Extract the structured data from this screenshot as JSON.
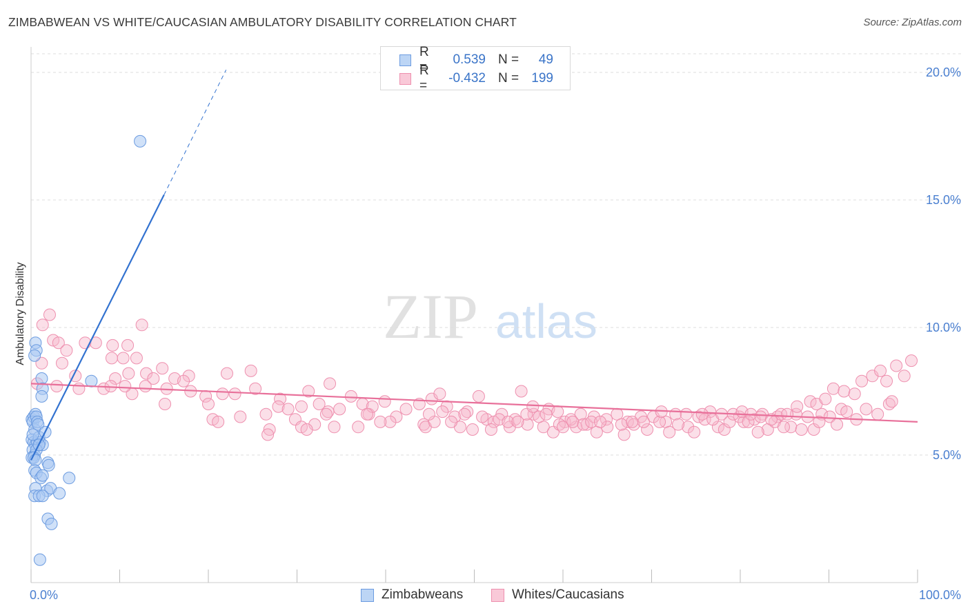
{
  "title": "ZIMBABWEAN VS WHITE/CAUCASIAN AMBULATORY DISABILITY CORRELATION CHART",
  "source": "Source: ZipAtlas.com",
  "watermark": {
    "zip": "ZIP",
    "atlas": "atlas"
  },
  "colors": {
    "blue_fill": "#a9c8f2",
    "blue_stroke": "#6b9be0",
    "blue_line": "#3272d0",
    "pink_fill": "#f6b7cb",
    "pink_stroke": "#ee8fae",
    "pink_line": "#e8709a",
    "tick_label": "#4a7fd0",
    "grid": "#dddddd"
  },
  "legend_top": [
    {
      "series": "Zimbabweans",
      "r_label": "R =",
      "r_value": "0.539",
      "n_label": "N =",
      "n_value": "49"
    },
    {
      "series": "Whites/Caucasians",
      "r_label": "R =",
      "r_value": "-0.432",
      "n_label": "N =",
      "n_value": "199"
    }
  ],
  "legend_bottom": [
    "Zimbabweans",
    "Whites/Caucasians"
  ],
  "chart_data": {
    "type": "scatter",
    "title": "ZIMBABWEAN VS WHITE/CAUCASIAN AMBULATORY DISABILITY CORRELATION CHART",
    "xlabel": "",
    "ylabel": "Ambulatory Disability",
    "xlim": [
      0,
      100
    ],
    "ylim": [
      0,
      21
    ],
    "x_tick_labels": [
      "0.0%",
      "100.0%"
    ],
    "y_ticks": [
      5,
      10,
      15,
      20
    ],
    "y_tick_labels": [
      "5.0%",
      "10.0%",
      "15.0%",
      "20.0%"
    ],
    "grid": true,
    "legend_position": "top-center",
    "series": [
      {
        "name": "Zimbabweans",
        "r": 0.539,
        "n": 49,
        "trend": {
          "x0": 0,
          "y0": 4.8,
          "x1": 15,
          "y1": 15.2,
          "dashed_to_x": 22,
          "dashed_to_y": 20.1
        },
        "points": [
          [
            0.1,
            6.4
          ],
          [
            0.3,
            6.5
          ],
          [
            0.5,
            6.6
          ],
          [
            0.2,
            6.3
          ],
          [
            0.6,
            6.5
          ],
          [
            0.4,
            6.0
          ],
          [
            0.7,
            6.3
          ],
          [
            0.8,
            6.2
          ],
          [
            0.1,
            5.6
          ],
          [
            0.3,
            5.5
          ],
          [
            0.5,
            5.4
          ],
          [
            0.7,
            5.5
          ],
          [
            1.0,
            5.5
          ],
          [
            1.3,
            5.4
          ],
          [
            0.2,
            5.2
          ],
          [
            0.4,
            5.0
          ],
          [
            0.6,
            5.2
          ],
          [
            0.1,
            4.9
          ],
          [
            0.3,
            4.9
          ],
          [
            0.5,
            4.8
          ],
          [
            0.9,
            5.7
          ],
          [
            1.6,
            5.9
          ],
          [
            1.9,
            4.7
          ],
          [
            2.0,
            4.6
          ],
          [
            0.4,
            4.4
          ],
          [
            0.6,
            4.3
          ],
          [
            1.1,
            4.1
          ],
          [
            1.3,
            4.2
          ],
          [
            0.5,
            3.7
          ],
          [
            1.8,
            3.6
          ],
          [
            2.2,
            3.7
          ],
          [
            0.4,
            3.4
          ],
          [
            0.9,
            3.4
          ],
          [
            1.3,
            3.4
          ],
          [
            3.2,
            3.5
          ],
          [
            4.3,
            4.1
          ],
          [
            1.9,
            2.5
          ],
          [
            2.3,
            2.3
          ],
          [
            1.0,
            0.9
          ],
          [
            0.5,
            9.4
          ],
          [
            0.6,
            9.1
          ],
          [
            0.4,
            8.9
          ],
          [
            1.2,
            8.0
          ],
          [
            1.3,
            7.6
          ],
          [
            1.2,
            7.3
          ],
          [
            0.9,
            5.4
          ],
          [
            0.2,
            5.8
          ],
          [
            12.3,
            17.3
          ],
          [
            6.8,
            7.9
          ]
        ]
      },
      {
        "name": "Whites/Caucasians",
        "r": -0.432,
        "n": 199,
        "trend": {
          "x0": 0,
          "y0": 7.8,
          "x1": 100,
          "y1": 6.3
        },
        "points": [
          [
            2.1,
            10.5
          ],
          [
            1.3,
            10.1
          ],
          [
            12.5,
            10.1
          ],
          [
            2.5,
            9.5
          ],
          [
            3.1,
            9.4
          ],
          [
            6.1,
            9.4
          ],
          [
            9.2,
            9.3
          ],
          [
            7.3,
            9.4
          ],
          [
            4.0,
            9.1
          ],
          [
            10.9,
            9.3
          ],
          [
            1.2,
            8.6
          ],
          [
            3.5,
            8.6
          ],
          [
            5.0,
            8.1
          ],
          [
            9.1,
            8.8
          ],
          [
            10.4,
            8.8
          ],
          [
            11.9,
            8.8
          ],
          [
            9.5,
            8.0
          ],
          [
            13.0,
            8.2
          ],
          [
            14.8,
            8.4
          ],
          [
            16.2,
            8.0
          ],
          [
            13.8,
            8.0
          ],
          [
            11.0,
            8.2
          ],
          [
            17.8,
            8.1
          ],
          [
            22.1,
            8.2
          ],
          [
            24.8,
            8.3
          ],
          [
            0.7,
            7.8
          ],
          [
            2.9,
            7.7
          ],
          [
            5.4,
            7.6
          ],
          [
            8.2,
            7.6
          ],
          [
            9.0,
            7.7
          ],
          [
            11.4,
            7.4
          ],
          [
            15.3,
            7.6
          ],
          [
            17.2,
            7.9
          ],
          [
            18.0,
            7.5
          ],
          [
            19.7,
            7.3
          ],
          [
            21.6,
            7.4
          ],
          [
            25.3,
            7.6
          ],
          [
            28.1,
            7.2
          ],
          [
            31.3,
            7.5
          ],
          [
            33.7,
            7.8
          ],
          [
            15.1,
            7.0
          ],
          [
            12.9,
            7.7
          ],
          [
            10.6,
            7.7
          ],
          [
            20.0,
            7.0
          ],
          [
            23.0,
            7.4
          ],
          [
            20.5,
            6.4
          ],
          [
            21.1,
            6.3
          ],
          [
            23.6,
            6.5
          ],
          [
            26.5,
            6.6
          ],
          [
            27.9,
            6.9
          ],
          [
            29.0,
            6.8
          ],
          [
            30.5,
            6.9
          ],
          [
            32.5,
            7.0
          ],
          [
            34.8,
            6.8
          ],
          [
            36.1,
            7.3
          ],
          [
            37.4,
            7.0
          ],
          [
            38.1,
            6.6
          ],
          [
            39.9,
            7.1
          ],
          [
            41.2,
            6.5
          ],
          [
            42.3,
            6.8
          ],
          [
            43.8,
            7.0
          ],
          [
            45.2,
            7.2
          ],
          [
            46.1,
            7.4
          ],
          [
            46.9,
            6.9
          ],
          [
            47.8,
            6.5
          ],
          [
            49.2,
            6.7
          ],
          [
            50.5,
            7.3
          ],
          [
            51.4,
            6.4
          ],
          [
            53.1,
            6.6
          ],
          [
            54.6,
            6.4
          ],
          [
            55.3,
            7.5
          ],
          [
            56.7,
            6.6
          ],
          [
            57.8,
            6.1
          ],
          [
            58.4,
            6.8
          ],
          [
            60.2,
            6.3
          ],
          [
            61.5,
            6.1
          ],
          [
            62.7,
            6.2
          ],
          [
            63.5,
            6.5
          ],
          [
            64.9,
            6.4
          ],
          [
            66.1,
            6.6
          ],
          [
            67.3,
            6.3
          ],
          [
            68.8,
            6.5
          ],
          [
            69.5,
            6.0
          ],
          [
            70.2,
            6.5
          ],
          [
            71.6,
            6.3
          ],
          [
            72.7,
            6.6
          ],
          [
            74.1,
            6.1
          ],
          [
            75.3,
            6.5
          ],
          [
            76.6,
            6.7
          ],
          [
            77.5,
            6.1
          ],
          [
            78.2,
            6.0
          ],
          [
            79.9,
            6.5
          ],
          [
            80.4,
            6.3
          ],
          [
            81.6,
            6.4
          ],
          [
            82.5,
            6.6
          ],
          [
            83.1,
            6.0
          ],
          [
            84.2,
            6.5
          ],
          [
            85.7,
            6.1
          ],
          [
            86.3,
            6.6
          ],
          [
            87.6,
            6.5
          ],
          [
            88.3,
            6.0
          ],
          [
            89.2,
            6.6
          ],
          [
            90.1,
            6.5
          ],
          [
            91.4,
            6.8
          ],
          [
            92.0,
            6.7
          ],
          [
            93.1,
            6.4
          ],
          [
            94.2,
            6.8
          ],
          [
            95.5,
            6.6
          ],
          [
            96.8,
            7.0
          ],
          [
            97.1,
            7.1
          ],
          [
            26.9,
            6.0
          ],
          [
            29.8,
            6.4
          ],
          [
            32.0,
            6.2
          ],
          [
            33.5,
            6.7
          ],
          [
            36.9,
            6.1
          ],
          [
            40.5,
            6.3
          ],
          [
            44.3,
            6.2
          ],
          [
            48.4,
            6.1
          ],
          [
            52.2,
            6.3
          ],
          [
            54.0,
            6.1
          ],
          [
            56.0,
            6.2
          ],
          [
            58.9,
            5.9
          ],
          [
            59.6,
            6.2
          ],
          [
            60.9,
            6.4
          ],
          [
            62.0,
            6.6
          ],
          [
            63.8,
            5.9
          ],
          [
            65.0,
            6.1
          ],
          [
            66.9,
            5.8
          ],
          [
            68.0,
            6.2
          ],
          [
            70.9,
            6.3
          ],
          [
            72.0,
            5.9
          ],
          [
            73.0,
            6.2
          ],
          [
            74.8,
            5.9
          ],
          [
            76.0,
            6.4
          ],
          [
            78.8,
            6.3
          ],
          [
            80.9,
            6.3
          ],
          [
            82.0,
            5.9
          ],
          [
            83.9,
            6.3
          ],
          [
            84.9,
            6.1
          ],
          [
            86.9,
            6.0
          ],
          [
            88.9,
            6.3
          ],
          [
            90.9,
            6.2
          ],
          [
            33.3,
            6.6
          ],
          [
            34.2,
            6.1
          ],
          [
            30.5,
            6.1
          ],
          [
            31.1,
            6.0
          ],
          [
            26.7,
            5.8
          ],
          [
            44.5,
            6.1
          ],
          [
            45.5,
            6.3
          ],
          [
            39.4,
            6.3
          ],
          [
            38.5,
            6.9
          ],
          [
            37.9,
            6.6
          ],
          [
            44.9,
            6.6
          ],
          [
            46.4,
            6.7
          ],
          [
            47.4,
            6.3
          ],
          [
            48.9,
            6.6
          ],
          [
            49.8,
            6.0
          ],
          [
            50.9,
            6.5
          ],
          [
            51.9,
            6.0
          ],
          [
            52.8,
            6.4
          ],
          [
            53.8,
            6.3
          ],
          [
            54.9,
            6.3
          ],
          [
            55.9,
            6.6
          ],
          [
            56.6,
            6.9
          ],
          [
            57.3,
            6.5
          ],
          [
            58.1,
            6.6
          ],
          [
            59.4,
            6.7
          ],
          [
            60.0,
            6.1
          ],
          [
            61.1,
            6.3
          ],
          [
            62.3,
            6.2
          ],
          [
            63.2,
            6.3
          ],
          [
            64.2,
            6.3
          ],
          [
            66.6,
            6.2
          ],
          [
            67.8,
            6.3
          ],
          [
            69.1,
            6.3
          ],
          [
            71.1,
            6.7
          ],
          [
            73.9,
            6.6
          ],
          [
            75.7,
            6.6
          ],
          [
            76.9,
            6.4
          ],
          [
            77.9,
            6.6
          ],
          [
            79.2,
            6.6
          ],
          [
            80.2,
            6.7
          ],
          [
            81.2,
            6.6
          ],
          [
            82.3,
            6.5
          ],
          [
            83.5,
            6.4
          ],
          [
            84.6,
            6.6
          ],
          [
            85.3,
            6.6
          ],
          [
            86.4,
            6.9
          ],
          [
            87.9,
            7.1
          ],
          [
            88.6,
            7.0
          ],
          [
            89.6,
            7.2
          ],
          [
            90.5,
            7.6
          ],
          [
            91.7,
            7.5
          ],
          [
            92.9,
            7.4
          ],
          [
            93.7,
            7.9
          ],
          [
            94.9,
            8.1
          ],
          [
            95.8,
            8.3
          ],
          [
            96.5,
            7.9
          ],
          [
            97.6,
            8.5
          ],
          [
            98.5,
            8.1
          ],
          [
            99.3,
            8.7
          ]
        ]
      }
    ]
  }
}
